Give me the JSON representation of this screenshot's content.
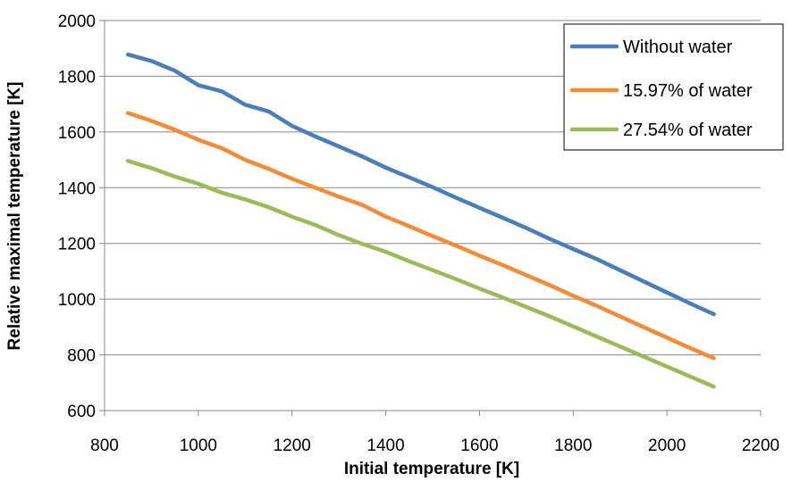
{
  "chart_data": {
    "type": "line",
    "title": "",
    "xlabel": "Initial temperature [K]",
    "ylabel": "Relative maximal temperature [K]",
    "xlim": [
      800,
      2200
    ],
    "ylim": [
      600,
      2000
    ],
    "xticks": [
      "800",
      "1000",
      "1200",
      "1400",
      "1600",
      "1800",
      "2000",
      "2200"
    ],
    "yticks": [
      "600",
      "800",
      "1000",
      "1200",
      "1400",
      "1600",
      "1800",
      "2000"
    ],
    "grid": true,
    "legend_position": "top-right",
    "x": [
      850,
      900,
      950,
      1000,
      1050,
      1100,
      1150,
      1200,
      1250,
      1300,
      1350,
      1400,
      1450,
      1500,
      1550,
      1600,
      1650,
      1700,
      1750,
      1800,
      1850,
      1900,
      1950,
      2000,
      2050,
      2100
    ],
    "series": [
      {
        "name": "Without water",
        "color": "#4a7ebb",
        "values": [
          1878,
          1855,
          1820,
          1768,
          1746,
          1698,
          1674,
          1622,
          1584,
          1548,
          1512,
          1472,
          1437,
          1402,
          1364,
          1328,
          1292,
          1255,
          1216,
          1180,
          1144,
          1104,
          1064,
          1024,
          984,
          946
        ]
      },
      {
        "name": "15.97% of water",
        "color": "#f58a37",
        "values": [
          1668,
          1640,
          1608,
          1572,
          1542,
          1500,
          1468,
          1432,
          1400,
          1368,
          1338,
          1296,
          1262,
          1226,
          1192,
          1156,
          1122,
          1086,
          1050,
          1012,
          976,
          938,
          900,
          862,
          824,
          788
        ]
      },
      {
        "name": "27.54% of water",
        "color": "#9bbb59",
        "values": [
          1496,
          1470,
          1440,
          1414,
          1382,
          1358,
          1330,
          1296,
          1266,
          1230,
          1198,
          1170,
          1136,
          1104,
          1072,
          1038,
          1006,
          972,
          938,
          902,
          866,
          830,
          794,
          758,
          722,
          686
        ]
      }
    ]
  }
}
